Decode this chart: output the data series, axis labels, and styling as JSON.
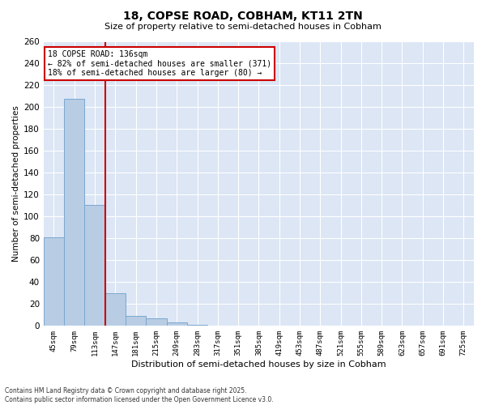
{
  "title_line1": "18, COPSE ROAD, COBHAM, KT11 2TN",
  "title_line2": "Size of property relative to semi-detached houses in Cobham",
  "xlabel": "Distribution of semi-detached houses by size in Cobham",
  "ylabel": "Number of semi-detached properties",
  "categories": [
    "45sqm",
    "79sqm",
    "113sqm",
    "147sqm",
    "181sqm",
    "215sqm",
    "249sqm",
    "283sqm",
    "317sqm",
    "351sqm",
    "385sqm",
    "419sqm",
    "453sqm",
    "487sqm",
    "521sqm",
    "555sqm",
    "589sqm",
    "623sqm",
    "657sqm",
    "691sqm",
    "725sqm"
  ],
  "values": [
    81,
    208,
    111,
    30,
    9,
    7,
    3,
    1,
    0,
    0,
    0,
    0,
    0,
    0,
    0,
    0,
    0,
    0,
    0,
    0,
    0
  ],
  "bar_color": "#b8cce4",
  "bar_edge_color": "#7aa8d0",
  "vline_x": 2.5,
  "vline_color": "#cc0000",
  "annotation_title": "18 COPSE ROAD: 136sqm",
  "annotation_line2": "← 82% of semi-detached houses are smaller (371)",
  "annotation_line3": "18% of semi-detached houses are larger (80) →",
  "annotation_box_color": "#cc0000",
  "annotation_bg_color": "#ffffff",
  "ylim": [
    0,
    260
  ],
  "yticks": [
    0,
    20,
    40,
    60,
    80,
    100,
    120,
    140,
    160,
    180,
    200,
    220,
    240,
    260
  ],
  "background_color": "#dce6f5",
  "footer_line1": "Contains HM Land Registry data © Crown copyright and database right 2025.",
  "footer_line2": "Contains public sector information licensed under the Open Government Licence v3.0."
}
